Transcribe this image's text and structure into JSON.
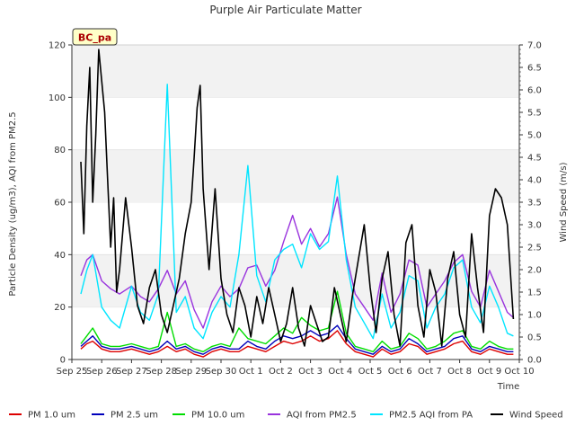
{
  "chart_data": {
    "type": "line",
    "title": "Purple Air Particulate Matter",
    "badge": "BC_pa",
    "xlabel": "Time",
    "ylabel": "Particle Density (ug/m3), AQI from PM2.5",
    "y2label": "Wind Speed (m/s)",
    "ylim": [
      0,
      120
    ],
    "y2lim": [
      0,
      7.0
    ],
    "xlim": [
      0,
      15
    ],
    "x_ticks": [
      "Sep 25",
      "Sep 26",
      "Sep 27",
      "Sep 28",
      "Sep 29",
      "Sep 30",
      "Oct 1",
      "Oct 2",
      "Oct 3",
      "Oct 4",
      "Oct 5",
      "Oct 6",
      "Oct 7",
      "Oct 8",
      "Oct 9",
      "Oct 10"
    ],
    "y_ticks": [
      "0",
      "20",
      "40",
      "60",
      "80",
      "100",
      "120"
    ],
    "y2_ticks": [
      "0.0",
      "0.5",
      "1.0",
      "1.5",
      "2.0",
      "2.5",
      "3.0",
      "3.5",
      "4.0",
      "4.5",
      "5.0",
      "5.5",
      "6.0",
      "6.5",
      "7.0"
    ],
    "grid": "horizontal bands",
    "legend_position": "bottom",
    "series": [
      {
        "name": "PM 1.0 um",
        "color": "#dd0000",
        "axis": "left",
        "x": [
          0.3,
          0.5,
          0.7,
          1,
          1.3,
          1.6,
          2,
          2.3,
          2.6,
          2.9,
          3.2,
          3.5,
          3.8,
          4.1,
          4.4,
          4.7,
          5,
          5.3,
          5.6,
          5.9,
          6.2,
          6.5,
          6.8,
          7.1,
          7.4,
          7.7,
          8,
          8.3,
          8.6,
          8.9,
          9.2,
          9.5,
          9.8,
          10.1,
          10.4,
          10.7,
          11,
          11.3,
          11.6,
          11.9,
          12.2,
          12.5,
          12.8,
          13.1,
          13.4,
          13.7,
          14,
          14.3,
          14.6,
          14.8
        ],
        "values": [
          4,
          6,
          7,
          4,
          3,
          3,
          4,
          3,
          2,
          3,
          5,
          3,
          4,
          2,
          1,
          3,
          4,
          3,
          3,
          5,
          4,
          3,
          5,
          7,
          6,
          7,
          9,
          7,
          8,
          11,
          6,
          3,
          2,
          1,
          4,
          2,
          3,
          6,
          5,
          2,
          3,
          4,
          6,
          7,
          3,
          2,
          4,
          3,
          2,
          2
        ]
      },
      {
        "name": "PM 2.5 um",
        "color": "#0000bb",
        "axis": "left",
        "x": [
          0.3,
          0.5,
          0.7,
          1,
          1.3,
          1.6,
          2,
          2.3,
          2.6,
          2.9,
          3.2,
          3.5,
          3.8,
          4.1,
          4.4,
          4.7,
          5,
          5.3,
          5.6,
          5.9,
          6.2,
          6.5,
          6.8,
          7.1,
          7.4,
          7.7,
          8,
          8.3,
          8.6,
          8.9,
          9.2,
          9.5,
          9.8,
          10.1,
          10.4,
          10.7,
          11,
          11.3,
          11.6,
          11.9,
          12.2,
          12.5,
          12.8,
          13.1,
          13.4,
          13.7,
          14,
          14.3,
          14.6,
          14.8
        ],
        "values": [
          5,
          7,
          9,
          5,
          4,
          4,
          5,
          4,
          3,
          4,
          7,
          4,
          5,
          3,
          2,
          4,
          5,
          4,
          4,
          7,
          5,
          4,
          7,
          9,
          8,
          9,
          11,
          9,
          10,
          13,
          8,
          4,
          3,
          2,
          5,
          3,
          4,
          8,
          6,
          3,
          4,
          5,
          8,
          9,
          4,
          3,
          5,
          4,
          3,
          3
        ]
      },
      {
        "name": "PM 10.0 um",
        "color": "#00dd00",
        "axis": "left",
        "x": [
          0.3,
          0.5,
          0.7,
          1,
          1.3,
          1.6,
          2,
          2.3,
          2.6,
          2.9,
          3.2,
          3.5,
          3.8,
          4.1,
          4.4,
          4.7,
          5,
          5.3,
          5.6,
          5.9,
          6.2,
          6.5,
          6.8,
          7.1,
          7.4,
          7.7,
          8,
          8.3,
          8.6,
          8.9,
          9.2,
          9.5,
          9.8,
          10.1,
          10.4,
          10.7,
          11,
          11.3,
          11.6,
          11.9,
          12.2,
          12.5,
          12.8,
          13.1,
          13.4,
          13.7,
          14,
          14.3,
          14.6,
          14.8
        ],
        "values": [
          6,
          9,
          12,
          6,
          5,
          5,
          6,
          5,
          4,
          5,
          18,
          5,
          6,
          4,
          3,
          5,
          6,
          5,
          12,
          8,
          7,
          6,
          9,
          12,
          10,
          16,
          13,
          11,
          12,
          26,
          10,
          5,
          4,
          3,
          7,
          4,
          5,
          10,
          8,
          4,
          5,
          7,
          10,
          11,
          5,
          4,
          7,
          5,
          4,
          4
        ]
      },
      {
        "name": "AQI from PM2.5",
        "color": "#9933dd",
        "axis": "left",
        "x": [
          0.3,
          0.5,
          0.7,
          1,
          1.3,
          1.6,
          2,
          2.3,
          2.6,
          2.9,
          3.2,
          3.5,
          3.8,
          4.1,
          4.4,
          4.7,
          5,
          5.3,
          5.6,
          5.9,
          6.2,
          6.5,
          6.8,
          7.1,
          7.4,
          7.7,
          8,
          8.3,
          8.6,
          8.9,
          9.2,
          9.5,
          9.8,
          10.1,
          10.4,
          10.7,
          11,
          11.3,
          11.6,
          11.9,
          12.2,
          12.5,
          12.8,
          13.1,
          13.4,
          13.7,
          14,
          14.3,
          14.6,
          14.8
        ],
        "values": [
          32,
          38,
          40,
          30,
          27,
          25,
          28,
          24,
          22,
          27,
          34,
          25,
          30,
          19,
          12,
          22,
          28,
          24,
          27,
          35,
          36,
          28,
          34,
          45,
          55,
          44,
          50,
          43,
          48,
          62,
          40,
          25,
          20,
          15,
          33,
          18,
          25,
          38,
          36,
          20,
          25,
          30,
          37,
          40,
          26,
          20,
          34,
          26,
          18,
          16
        ]
      },
      {
        "name": "PM2.5 AQI from PA",
        "color": "#00e5ff",
        "axis": "left",
        "x": [
          0.3,
          0.5,
          0.7,
          1,
          1.3,
          1.6,
          2,
          2.3,
          2.6,
          2.9,
          3.2,
          3.5,
          3.8,
          4.1,
          4.4,
          4.7,
          5,
          5.3,
          5.6,
          5.9,
          6.2,
          6.5,
          6.8,
          7.1,
          7.4,
          7.7,
          8,
          8.3,
          8.6,
          8.9,
          9.2,
          9.5,
          9.8,
          10.1,
          10.4,
          10.7,
          11,
          11.3,
          11.6,
          11.9,
          12.2,
          12.5,
          12.8,
          13.1,
          13.4,
          13.7,
          14,
          14.3,
          14.6,
          14.8
        ],
        "values": [
          25,
          34,
          40,
          20,
          15,
          12,
          28,
          18,
          15,
          25,
          105,
          18,
          24,
          12,
          8,
          18,
          24,
          20,
          40,
          74,
          32,
          22,
          38,
          42,
          44,
          35,
          48,
          42,
          45,
          70,
          38,
          20,
          14,
          8,
          25,
          12,
          18,
          32,
          30,
          12,
          20,
          25,
          35,
          38,
          20,
          14,
          28,
          20,
          10,
          9
        ]
      },
      {
        "name": "Wind Speed",
        "color": "#000000",
        "axis": "right",
        "x": [
          0.3,
          0.4,
          0.5,
          0.6,
          0.7,
          0.8,
          0.9,
          1.0,
          1.1,
          1.2,
          1.3,
          1.4,
          1.5,
          1.6,
          1.8,
          2.0,
          2.2,
          2.4,
          2.6,
          2.8,
          3.0,
          3.2,
          3.4,
          3.6,
          3.8,
          4.0,
          4.1,
          4.2,
          4.3,
          4.4,
          4.6,
          4.8,
          5.0,
          5.2,
          5.4,
          5.6,
          5.8,
          6.0,
          6.2,
          6.4,
          6.6,
          6.8,
          7.0,
          7.2,
          7.4,
          7.6,
          7.8,
          8.0,
          8.2,
          8.4,
          8.6,
          8.8,
          9.0,
          9.2,
          9.4,
          9.6,
          9.8,
          10.0,
          10.2,
          10.4,
          10.6,
          10.8,
          11.0,
          11.2,
          11.4,
          11.6,
          11.8,
          12.0,
          12.2,
          12.4,
          12.6,
          12.8,
          13.0,
          13.2,
          13.4,
          13.6,
          13.8,
          14.0,
          14.2,
          14.4,
          14.6,
          14.8
        ],
        "values": [
          4.4,
          2.8,
          5.2,
          6.5,
          3.5,
          5.0,
          6.9,
          6.2,
          5.5,
          4.0,
          2.5,
          3.6,
          1.5,
          2.0,
          3.6,
          2.5,
          1.2,
          0.8,
          1.6,
          2.0,
          1.0,
          0.6,
          1.2,
          1.8,
          2.8,
          3.5,
          4.5,
          5.6,
          6.1,
          3.8,
          2.0,
          3.8,
          1.8,
          1.0,
          0.6,
          1.6,
          1.2,
          0.5,
          1.4,
          0.8,
          1.6,
          1.0,
          0.4,
          0.8,
          1.6,
          0.7,
          0.3,
          1.2,
          0.8,
          0.4,
          0.5,
          1.6,
          1.0,
          0.4,
          1.4,
          2.2,
          3.0,
          1.6,
          0.6,
          1.8,
          2.4,
          1.0,
          0.3,
          2.6,
          3.0,
          1.2,
          0.5,
          2.0,
          1.5,
          0.3,
          1.8,
          2.4,
          1.0,
          0.5,
          2.8,
          1.6,
          0.6,
          3.2,
          3.8,
          3.6,
          3.0,
          0.9
        ]
      }
    ]
  }
}
